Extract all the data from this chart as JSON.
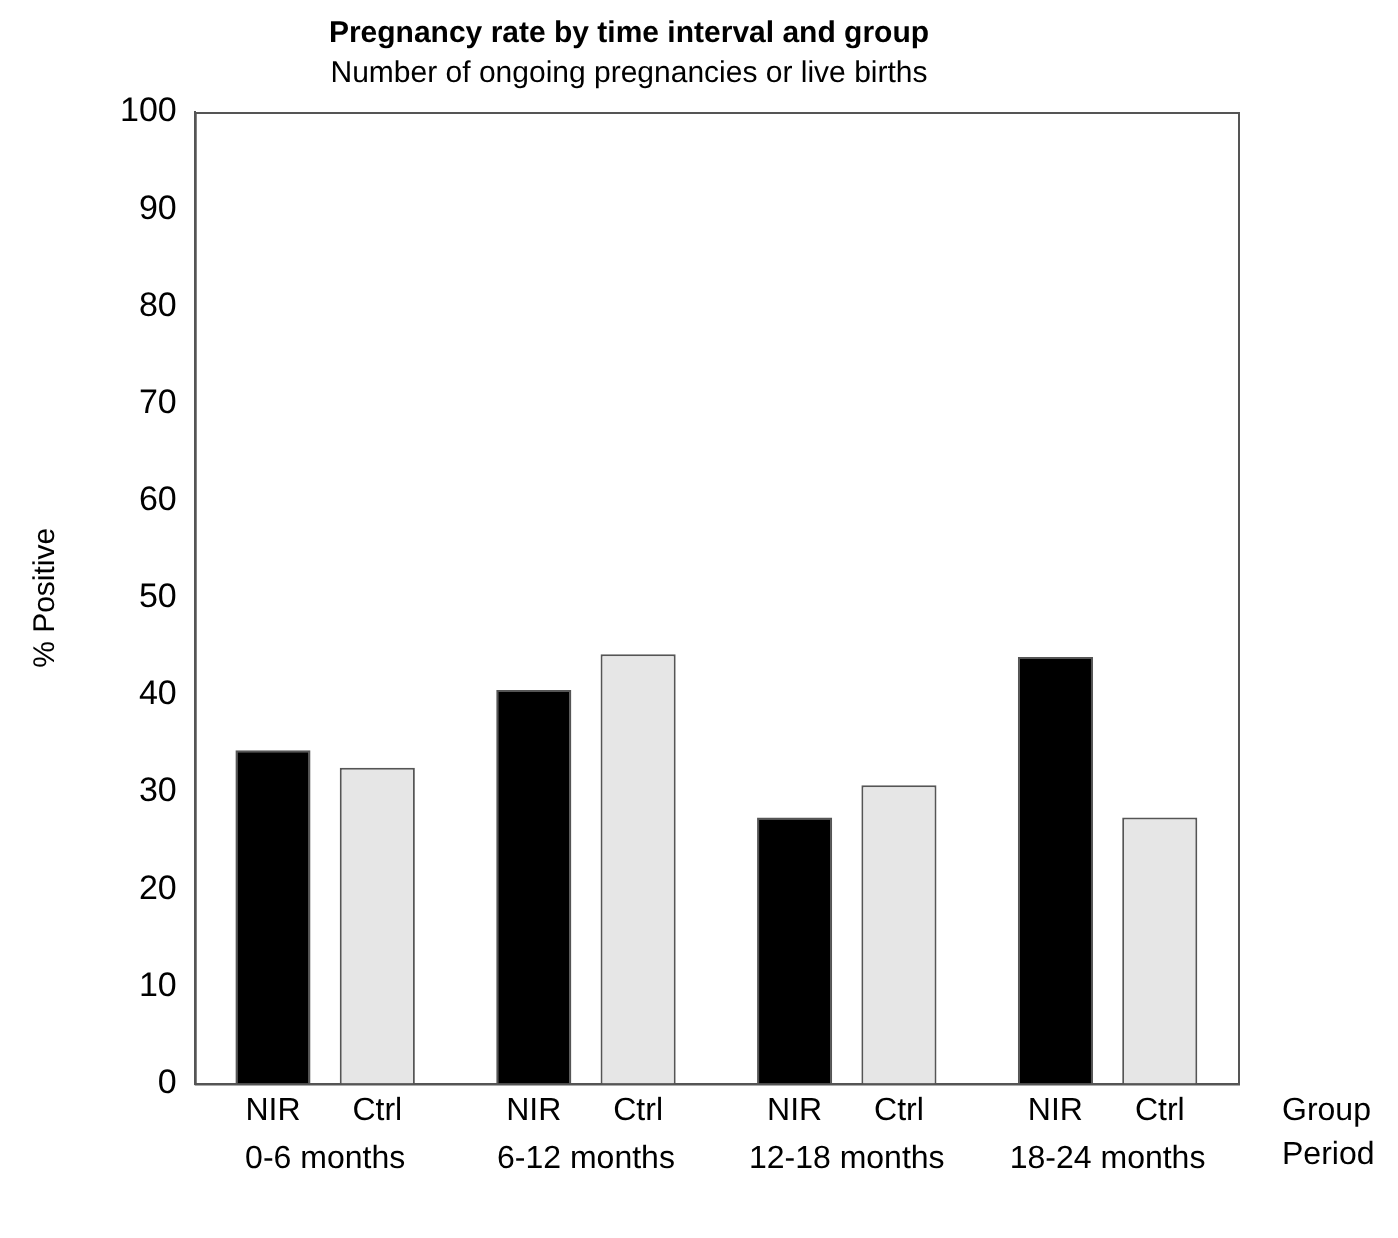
{
  "chart_data": {
    "type": "bar",
    "title": "Pregnancy rate by time interval and group",
    "subtitle": "Number of ongoing pregnancies or live births",
    "ylabel": "% Positive",
    "categories": [
      "0-6 months",
      "6-12 months",
      "12-18 months",
      "18-24 months"
    ],
    "series": [
      {
        "name": "NIR",
        "color": "#000000",
        "values": [
          34.3,
          40.5,
          27.4,
          43.9
        ]
      },
      {
        "name": "Ctrl",
        "color": "#e6e6e6",
        "values": [
          32.5,
          44.2,
          30.7,
          27.4
        ]
      }
    ],
    "ylim": [
      0,
      100
    ],
    "yticks": [
      0,
      10,
      20,
      30,
      40,
      50,
      60,
      70,
      80,
      90,
      100
    ],
    "grid": false,
    "legend": false,
    "annotations": [
      "Group",
      "Period"
    ]
  }
}
